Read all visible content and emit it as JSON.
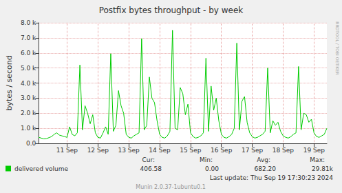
{
  "chart_data": {
    "type": "line",
    "title": "Postfix bytes throughput - by week",
    "y_label": "bytes / second",
    "categories": [
      null,
      null,
      null,
      null,
      null,
      null,
      null,
      null,
      null,
      null,
      null,
      "11 Sep",
      null,
      null,
      null,
      null,
      null,
      null,
      null,
      null,
      null,
      null,
      null,
      "12 Sep",
      null,
      null,
      null,
      null,
      null,
      null,
      null,
      null,
      null,
      null,
      null,
      "13 Sep",
      null,
      null,
      null,
      null,
      null,
      null,
      null,
      null,
      null,
      null,
      null,
      "14 Sep",
      null,
      null,
      null,
      null,
      null,
      null,
      null,
      null,
      null,
      null,
      null,
      "15 Sep",
      null,
      null,
      null,
      null,
      null,
      null,
      null,
      null,
      null,
      null,
      null,
      "16 Sep",
      null,
      null,
      null,
      null,
      null,
      null,
      null,
      null,
      null,
      null,
      null,
      "17 Sep",
      null,
      null,
      null,
      null,
      null,
      null,
      null,
      null,
      null,
      null,
      null,
      "18 Sep",
      null,
      null,
      null,
      null,
      null,
      null,
      null,
      null,
      null,
      null,
      null,
      "19 Sep",
      null,
      null,
      null,
      null,
      null
    ],
    "series": [
      {
        "name": "delivered volume",
        "color": "#00cc00",
        "values": [
          400,
          350,
          300,
          320,
          380,
          450,
          600,
          700,
          550,
          500,
          450,
          400,
          1100,
          600,
          500,
          700,
          5200,
          900,
          2500,
          2000,
          1300,
          1900,
          700,
          400,
          350,
          700,
          1100,
          600,
          5950,
          800,
          1200,
          3500,
          2500,
          2000,
          600,
          400,
          350,
          500,
          600,
          700,
          6950,
          900,
          1200,
          4400,
          3000,
          2700,
          1500,
          600,
          400,
          350,
          500,
          800,
          7500,
          1000,
          900,
          3700,
          3300,
          1900,
          2600,
          700,
          450,
          350,
          400,
          500,
          700,
          5650,
          800,
          3800,
          2200,
          3000,
          1500,
          600,
          400,
          350,
          450,
          600,
          1000,
          6650,
          900,
          2800,
          3100,
          1400,
          700,
          450,
          350,
          400,
          500,
          600,
          800,
          5000,
          700,
          1500,
          1200,
          1400,
          800,
          500,
          400,
          350,
          450,
          600,
          700,
          5100,
          900,
          2000,
          1900,
          1400,
          1600,
          700,
          450,
          400,
          500,
          600,
          1000
        ]
      }
    ],
    "ylim": [
      0,
      8000
    ],
    "yticks": [
      {
        "value": 0,
        "label": "0.0"
      },
      {
        "value": 1000,
        "label": "1.0 k"
      },
      {
        "value": 2000,
        "label": "2.0 k"
      },
      {
        "value": 3000,
        "label": "3.0 k"
      },
      {
        "value": 4000,
        "label": "4.0 k"
      },
      {
        "value": 5000,
        "label": "5.0 k"
      },
      {
        "value": 6000,
        "label": "6.0 k"
      },
      {
        "value": 7000,
        "label": "7.0 k"
      },
      {
        "value": 8000,
        "label": "8.0 k"
      }
    ],
    "grid": true,
    "legend": "bottom-left",
    "stats": {
      "labels": [
        "Cur:",
        "Min:",
        "Avg:",
        "Max:"
      ],
      "values": [
        "406.58",
        "0.00",
        "682.20",
        "29.81k"
      ]
    },
    "footer": "Last update: Thu Sep 19 17:30:23 2024",
    "credit": "Munin 2.0.37-1ubuntu0.1",
    "side_text": "RRDTOOL / TOBI OETIKER"
  }
}
